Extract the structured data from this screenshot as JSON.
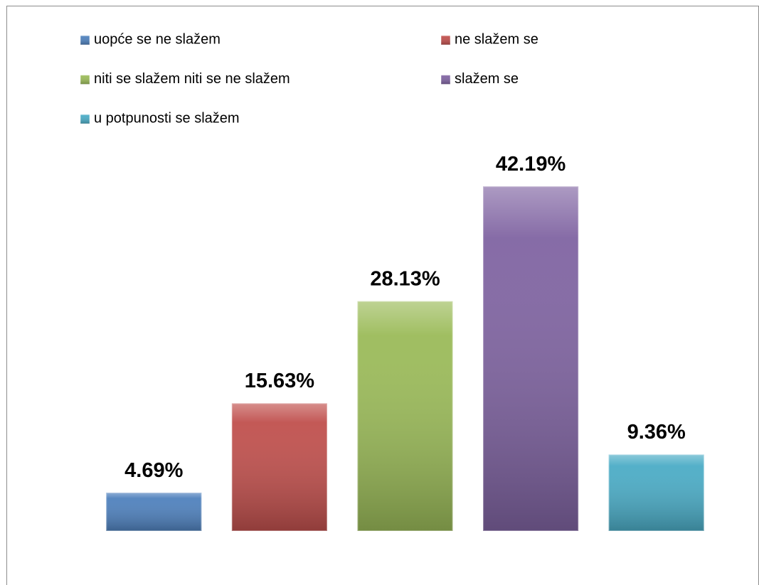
{
  "chart_data": {
    "type": "bar",
    "series": [
      {
        "name": "uopće se ne slažem",
        "color": "#4f81bd",
        "values": [
          4.69
        ],
        "value_labels": [
          "4.69%"
        ]
      },
      {
        "name": "ne slažem se",
        "color": "#c0504d",
        "values": [
          15.63
        ],
        "value_labels": [
          "15.63%"
        ]
      },
      {
        "name": "niti se slažem niti se ne slažem",
        "color": "#9bbb59",
        "values": [
          28.13
        ],
        "value_labels": [
          "28.13%"
        ]
      },
      {
        "name": "slažem se",
        "color": "#8064a2",
        "values": [
          42.19
        ],
        "value_labels": [
          "42.19%"
        ]
      },
      {
        "name": "u potpunosti se slažem",
        "color": "#4bacc6",
        "values": [
          9.36
        ],
        "value_labels": [
          "9.36%"
        ]
      }
    ],
    "ylim": [
      0,
      45
    ],
    "legend": "top"
  }
}
